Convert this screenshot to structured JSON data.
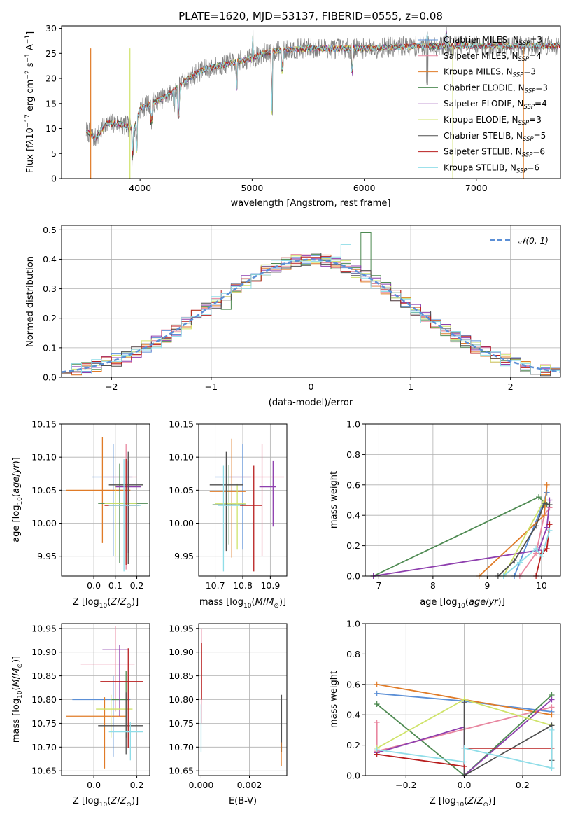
{
  "colors": {
    "chabrier_miles": "#5b8fd6",
    "salpeter_miles": "#e8869f",
    "kroupa_miles": "#e07b27",
    "chabrier_elodie": "#4e8a52",
    "salpeter_elodie": "#8e3fae",
    "kroupa_elodie": "#cfe36a",
    "chabrier_stelib": "#4f4f4f",
    "salpeter_stelib": "#b81e1e",
    "kroupa_stelib": "#8fdde8",
    "spectrum": "#808080",
    "normal_curve": "#5b8fd6"
  },
  "chart_data": [
    {
      "type": "line",
      "title": "PLATE=1620, MJD=53137, FIBERID=0555, z=0.08",
      "xlabel": "wavelength [Angstrom, rest frame]",
      "ylabel": "Flux [fλ10⁻¹⁷ erg cm⁻² s⁻¹ A⁻¹]",
      "xlim": [
        3300,
        7750
      ],
      "ylim": [
        0,
        30.5
      ],
      "xticks": [
        4000,
        5000,
        6000,
        7000,
        8000
      ],
      "yticks": [
        0,
        5,
        10,
        15,
        20,
        25,
        30
      ],
      "legend_position": "right",
      "legend": [
        {
          "label": "Chabrier MILES, N",
          "sub": "SSP",
          "suffix": "=3",
          "color_key": "chabrier_miles"
        },
        {
          "label": "Salpeter MILES, N",
          "sub": "SSP",
          "suffix": "=4",
          "color_key": "salpeter_miles"
        },
        {
          "label": "Kroupa MILES, N",
          "sub": "SSP",
          "suffix": "=3",
          "color_key": "kroupa_miles"
        },
        {
          "label": "Chabrier ELODIE, N",
          "sub": "SSP",
          "suffix": "=3",
          "color_key": "chabrier_elodie"
        },
        {
          "label": "Salpeter ELODIE, N",
          "sub": "SSP",
          "suffix": "=4",
          "color_key": "salpeter_elodie"
        },
        {
          "label": "Kroupa ELODIE, N",
          "sub": "SSP",
          "suffix": "=3",
          "color_key": "kroupa_elodie"
        },
        {
          "label": "Chabrier STELIB, N",
          "sub": "SSP",
          "suffix": "=5",
          "color_key": "chabrier_stelib"
        },
        {
          "label": "Salpeter STELIB, N",
          "sub": "SSP",
          "suffix": "=6",
          "color_key": "salpeter_stelib"
        },
        {
          "label": "Kroupa STELIB, N",
          "sub": "SSP",
          "suffix": "=6",
          "color_key": "kroupa_stelib"
        }
      ],
      "spectrum_knots": [
        [
          3500,
          10
        ],
        [
          3600,
          8
        ],
        [
          3700,
          11
        ],
        [
          3800,
          11
        ],
        [
          3950,
          10
        ],
        [
          4000,
          14
        ],
        [
          4100,
          15
        ],
        [
          4200,
          16
        ],
        [
          4300,
          17.5
        ],
        [
          4400,
          19.5
        ],
        [
          4500,
          21
        ],
        [
          4600,
          22
        ],
        [
          4700,
          22.5
        ],
        [
          4800,
          23
        ],
        [
          4900,
          23.5
        ],
        [
          5000,
          24
        ],
        [
          5100,
          25
        ],
        [
          5200,
          25.5
        ],
        [
          5500,
          26
        ],
        [
          6000,
          26
        ],
        [
          6500,
          26.5
        ],
        [
          7000,
          26.5
        ],
        [
          7400,
          26.5
        ],
        [
          7750,
          26.5
        ]
      ],
      "absorption_lines": [
        [
          3934,
          4
        ],
        [
          3969,
          5
        ],
        [
          4102,
          11
        ],
        [
          4304,
          13
        ],
        [
          4341,
          12
        ],
        [
          4861,
          18
        ],
        [
          5175,
          13
        ],
        [
          5270,
          21
        ],
        [
          5893,
          21
        ],
        [
          6563,
          20
        ]
      ],
      "emission_lines": [
        [
          5007,
          28
        ],
        [
          6563,
          29
        ],
        [
          6730,
          29
        ]
      ],
      "dropouts": [
        {
          "x": 3560,
          "color_key": "kroupa_miles"
        },
        {
          "x": 3910,
          "color_key": "kroupa_elodie"
        },
        {
          "x": 6790,
          "color_key": "kroupa_elodie"
        },
        {
          "x": 7420,
          "color_key": "kroupa_miles"
        }
      ]
    },
    {
      "type": "histogram",
      "xlabel": "(data-model)/error",
      "ylabel": "Normed distribution",
      "xlim": [
        -2.5,
        2.5
      ],
      "ylim": [
        0,
        0.515
      ],
      "xticks": [
        -2,
        -1,
        0,
        1,
        2
      ],
      "yticks": [
        0.0,
        0.1,
        0.2,
        0.3,
        0.4,
        0.5
      ],
      "legend_position": "upper right",
      "legend_label": "N(0, 1)",
      "bin_width": 0.1,
      "bin_start": -2.5,
      "bins": 50,
      "spikes": [
        {
          "x": 0.55,
          "value": 0.49,
          "color_key": "chabrier_elodie"
        },
        {
          "x": 0.35,
          "value": 0.45,
          "color_key": "kroupa_stelib"
        },
        {
          "x": -0.85,
          "value": 0.23,
          "color_key": "chabrier_elodie"
        }
      ]
    },
    {
      "type": "errorbar",
      "xlabel": "Z [log10(Z/Z⊙)]",
      "ylabel": "age  [log10(age/yr)]",
      "xlim": [
        -0.15,
        0.26
      ],
      "ylim": [
        9.92,
        10.15
      ],
      "xticks": [
        0.0,
        0.1,
        0.2
      ],
      "yticks": [
        9.95,
        10.0,
        10.05,
        10.1,
        10.15
      ],
      "points": [
        {
          "x": 0.09,
          "y": 10.07,
          "xerr": [
            0.1,
            0.09
          ],
          "yerr": [
            0.12,
            0.05
          ],
          "color_key": "chabrier_miles"
        },
        {
          "x": 0.15,
          "y": 10.07,
          "xerr": [
            0.1,
            0.05
          ],
          "yerr": [
            0.14,
            0.05
          ],
          "color_key": "salpeter_miles"
        },
        {
          "x": 0.04,
          "y": 10.05,
          "xerr": [
            0.17,
            0.13
          ],
          "yerr": [
            0.08,
            0.08
          ],
          "color_key": "kroupa_miles"
        },
        {
          "x": 0.12,
          "y": 10.03,
          "xerr": [
            0.1,
            0.13
          ],
          "yerr": [
            0.09,
            0.06
          ],
          "color_key": "chabrier_elodie"
        },
        {
          "x": 0.16,
          "y": 10.055,
          "xerr": [
            0.06,
            0.06
          ],
          "yerr": [
            0.1,
            0.04
          ],
          "color_key": "salpeter_elodie"
        },
        {
          "x": 0.1,
          "y": 10.03,
          "xerr": [
            0.05,
            0.1
          ],
          "yerr": [
            0.08,
            0.03
          ],
          "color_key": "kroupa_elodie"
        },
        {
          "x": 0.16,
          "y": 10.058,
          "xerr": [
            0.09,
            0.07
          ],
          "yerr": [
            0.12,
            0.05
          ],
          "color_key": "chabrier_stelib"
        },
        {
          "x": 0.15,
          "y": 10.027,
          "xerr": [
            0.1,
            0.06
          ],
          "yerr": [
            0.09,
            0.07
          ],
          "color_key": "salpeter_stelib"
        },
        {
          "x": 0.14,
          "y": 10.027,
          "xerr": [
            0.07,
            0.08
          ],
          "yerr": [
            0.1,
            0.07
          ],
          "color_key": "kroupa_stelib"
        }
      ]
    },
    {
      "type": "errorbar",
      "xlabel": "mass [log10(M/M⊙)]",
      "ylabel": "",
      "xlim": [
        10.64,
        10.96
      ],
      "ylim": [
        9.92,
        10.15
      ],
      "xticks": [
        10.7,
        10.8,
        10.9
      ],
      "yticks": [
        9.95,
        10.0,
        10.05,
        10.1,
        10.15
      ],
      "points": [
        {
          "x": 10.8,
          "y": 10.07,
          "xerr": [
            0.1,
            0.03
          ],
          "yerr": [
            0.11,
            0.05
          ],
          "color_key": "chabrier_miles"
        },
        {
          "x": 10.87,
          "y": 10.07,
          "xerr": [
            0.12,
            0.08
          ],
          "yerr": [
            0.12,
            0.05
          ],
          "color_key": "salpeter_miles"
        },
        {
          "x": 10.76,
          "y": 10.048,
          "xerr": [
            0.08,
            0.05
          ],
          "yerr": [
            0.1,
            0.08
          ],
          "color_key": "kroupa_miles"
        },
        {
          "x": 10.75,
          "y": 10.028,
          "xerr": [
            0.06,
            0.06
          ],
          "yerr": [
            0.06,
            0.06
          ],
          "color_key": "chabrier_elodie"
        },
        {
          "x": 10.91,
          "y": 10.055,
          "xerr": [
            0.05,
            0.01
          ],
          "yerr": [
            0.06,
            0.04
          ],
          "color_key": "salpeter_elodie"
        },
        {
          "x": 10.78,
          "y": 10.03,
          "xerr": [
            0.08,
            0.03
          ],
          "yerr": [
            0.07,
            0.03
          ],
          "color_key": "kroupa_elodie"
        },
        {
          "x": 10.74,
          "y": 10.058,
          "xerr": [
            0.06,
            0.06
          ],
          "yerr": [
            0.1,
            0.05
          ],
          "color_key": "chabrier_stelib"
        },
        {
          "x": 10.84,
          "y": 10.027,
          "xerr": [
            0.05,
            0.03
          ],
          "yerr": [
            0.1,
            0.06
          ],
          "color_key": "salpeter_stelib"
        },
        {
          "x": 10.73,
          "y": 10.027,
          "xerr": [
            0.02,
            0.06
          ],
          "yerr": [
            0.1,
            0.06
          ],
          "color_key": "kroupa_stelib"
        }
      ]
    },
    {
      "type": "line",
      "xlabel": "age  [log10(age/yr)]",
      "ylabel": "mass weight",
      "xlim": [
        6.75,
        10.35
      ],
      "ylim": [
        0,
        1.0
      ],
      "xticks": [
        7,
        8,
        9,
        10
      ],
      "yticks": [
        0.0,
        0.2,
        0.4,
        0.6,
        0.8,
        1.0
      ],
      "series": [
        {
          "color_key": "chabrier_miles",
          "x": [
            9.5,
            10.0,
            10.1
          ],
          "y": [
            0.0,
            0.45,
            0.55
          ]
        },
        {
          "color_key": "salpeter_miles",
          "x": [
            9.6,
            9.9,
            10.05,
            10.15
          ],
          "y": [
            0.0,
            0.15,
            0.4,
            0.45
          ]
        },
        {
          "color_key": "kroupa_miles",
          "x": [
            8.85,
            10.05,
            10.1
          ],
          "y": [
            0.0,
            0.4,
            0.6
          ]
        },
        {
          "color_key": "chabrier_elodie",
          "x": [
            6.9,
            9.95,
            10.1
          ],
          "y": [
            0.0,
            0.52,
            0.47
          ]
        },
        {
          "color_key": "salpeter_elodie",
          "x": [
            6.9,
            9.95,
            10.1,
            10.15
          ],
          "y": [
            0.0,
            0.17,
            0.32,
            0.5
          ]
        },
        {
          "color_key": "kroupa_elodie",
          "x": [
            9.3,
            10.05
          ],
          "y": [
            0.0,
            0.5
          ]
        },
        {
          "color_key": "chabrier_stelib",
          "x": [
            9.2,
            9.5,
            9.9,
            10.05,
            10.15
          ],
          "y": [
            0.0,
            0.1,
            0.33,
            0.48,
            0.47
          ]
        },
        {
          "color_key": "salpeter_stelib",
          "x": [
            9.9,
            10.0,
            10.1,
            10.15
          ],
          "y": [
            0.0,
            0.15,
            0.18,
            0.34
          ]
        },
        {
          "color_key": "kroupa_stelib",
          "x": [
            9.3,
            9.6,
            9.9,
            10.0,
            10.15
          ],
          "y": [
            0.0,
            0.09,
            0.18,
            0.13,
            0.3
          ]
        }
      ]
    },
    {
      "type": "errorbar",
      "xlabel": "Z [log10(Z/Z⊙)]",
      "ylabel": "mass [log10(M/M⊙)]",
      "xlim": [
        -0.15,
        0.26
      ],
      "ylim": [
        10.64,
        10.96
      ],
      "xticks": [
        0.0,
        0.2
      ],
      "yticks": [
        10.65,
        10.7,
        10.75,
        10.8,
        10.85,
        10.9,
        10.95
      ],
      "points": [
        {
          "x": 0.09,
          "y": 10.8,
          "xerr": [
            0.19,
            0.08
          ],
          "yerr": [
            0.12,
            0.05
          ],
          "color_key": "chabrier_miles"
        },
        {
          "x": 0.1,
          "y": 10.875,
          "xerr": [
            0.16,
            0.09
          ],
          "yerr": [
            0.1,
            0.08
          ],
          "color_key": "salpeter_miles"
        },
        {
          "x": 0.05,
          "y": 10.765,
          "xerr": [
            0.18,
            0.1
          ],
          "yerr": [
            0.11,
            0.04
          ],
          "color_key": "kroupa_miles"
        },
        {
          "x": 0.15,
          "y": 10.8,
          "xerr": [
            0.07,
            0.01
          ],
          "yerr": [
            0.08,
            0.06
          ],
          "color_key": "chabrier_elodie"
        },
        {
          "x": 0.12,
          "y": 10.905,
          "xerr": [
            0.08,
            0.04
          ],
          "yerr": [
            0.14,
            0.01
          ],
          "color_key": "salpeter_elodie"
        },
        {
          "x": 0.08,
          "y": 10.78,
          "xerr": [
            0.07,
            0.1
          ],
          "yerr": [
            0.06,
            0.03
          ],
          "color_key": "kroupa_elodie"
        },
        {
          "x": 0.15,
          "y": 10.745,
          "xerr": [
            0.13,
            0.08
          ],
          "yerr": [
            0.06,
            0.07
          ],
          "color_key": "chabrier_stelib"
        },
        {
          "x": 0.16,
          "y": 10.838,
          "xerr": [
            0.13,
            0.07
          ],
          "yerr": [
            0.14,
            0.07
          ],
          "color_key": "salpeter_stelib"
        },
        {
          "x": 0.17,
          "y": 10.732,
          "xerr": [
            0.1,
            0.06
          ],
          "yerr": [
            0.06,
            0.02
          ],
          "color_key": "kroupa_stelib"
        }
      ]
    },
    {
      "type": "errorbar",
      "xlabel": "E(B-V)",
      "ylabel": "",
      "xlim": [
        -0.0001,
        0.00355
      ],
      "ylim": [
        10.64,
        10.96
      ],
      "xticks": [
        0.0,
        0.002
      ],
      "tick_labels": [
        "0.000",
        "0.002"
      ],
      "yticks": [
        10.65,
        10.7,
        10.75,
        10.8,
        10.85,
        10.9,
        10.95
      ],
      "points": [
        {
          "x": 1e-05,
          "y": 10.8,
          "yerr": [
            0.05,
            0.15
          ],
          "color_key": "salpeter_miles"
        },
        {
          "x": 2e-05,
          "y": 10.86,
          "yerr": [
            0.06,
            0.06
          ],
          "color_key": "salpeter_stelib"
        },
        {
          "x": 0.0,
          "y": 10.74,
          "yerr": [
            0.05,
            0.05
          ],
          "color_key": "kroupa_stelib"
        },
        {
          "x": 0.00333,
          "y": 10.74,
          "yerr": [
            0.05,
            0.07
          ],
          "color_key": "chabrier_stelib"
        },
        {
          "x": 0.00332,
          "y": 10.69,
          "yerr": [
            0.03,
            0.02
          ],
          "color_key": "kroupa_miles"
        }
      ]
    },
    {
      "type": "line",
      "xlabel": "Z [log10(Z/Z⊙)]",
      "ylabel": "mass weight",
      "xlim": [
        -0.34,
        0.33
      ],
      "ylim": [
        0,
        1.0
      ],
      "xticks": [
        -0.2,
        0.0,
        0.2
      ],
      "tick_labels": [
        "−0.2",
        "0.0",
        "0.2"
      ],
      "yticks": [
        0.0,
        0.2,
        0.4,
        0.6,
        0.8,
        1.0
      ],
      "series": [
        {
          "color_key": "chabrier_miles",
          "x": [
            -0.3,
            0.0,
            0.3
          ],
          "y": [
            0.54,
            0.49,
            0.42
          ]
        },
        {
          "color_key": "salpeter_miles",
          "x": [
            -0.3,
            -0.3,
            0.3
          ],
          "y": [
            0.35,
            0.16,
            0.45
          ]
        },
        {
          "color_key": "kroupa_miles",
          "x": [
            -0.3,
            0.0,
            0.3
          ],
          "y": [
            0.6,
            0.5,
            0.4
          ]
        },
        {
          "color_key": "chabrier_elodie",
          "x": [
            -0.3,
            0.0,
            0.3
          ],
          "y": [
            0.47,
            0.0,
            0.53
          ]
        },
        {
          "color_key": "salpeter_elodie",
          "x": [
            -0.3,
            0.0,
            0.0,
            0.3
          ],
          "y": [
            0.15,
            0.32,
            0.0,
            0.5
          ]
        },
        {
          "color_key": "kroupa_elodie",
          "x": [
            -0.3,
            0.0,
            0.3
          ],
          "y": [
            0.18,
            0.5,
            0.33
          ]
        },
        {
          "color_key": "chabrier_stelib",
          "x": [
            0.0,
            0.0,
            0.3,
            0.3
          ],
          "y": [
            0.48,
            0.0,
            0.33,
            0.1
          ]
        },
        {
          "color_key": "salpeter_stelib",
          "x": [
            -0.3,
            0.0,
            0.0,
            0.3
          ],
          "y": [
            0.14,
            0.06,
            0.18,
            0.18
          ]
        },
        {
          "color_key": "kroupa_stelib",
          "x": [
            -0.3,
            0.0,
            0.0,
            0.3,
            0.3
          ],
          "y": [
            0.17,
            0.09,
            0.18,
            0.05,
            0.3
          ]
        }
      ]
    }
  ]
}
